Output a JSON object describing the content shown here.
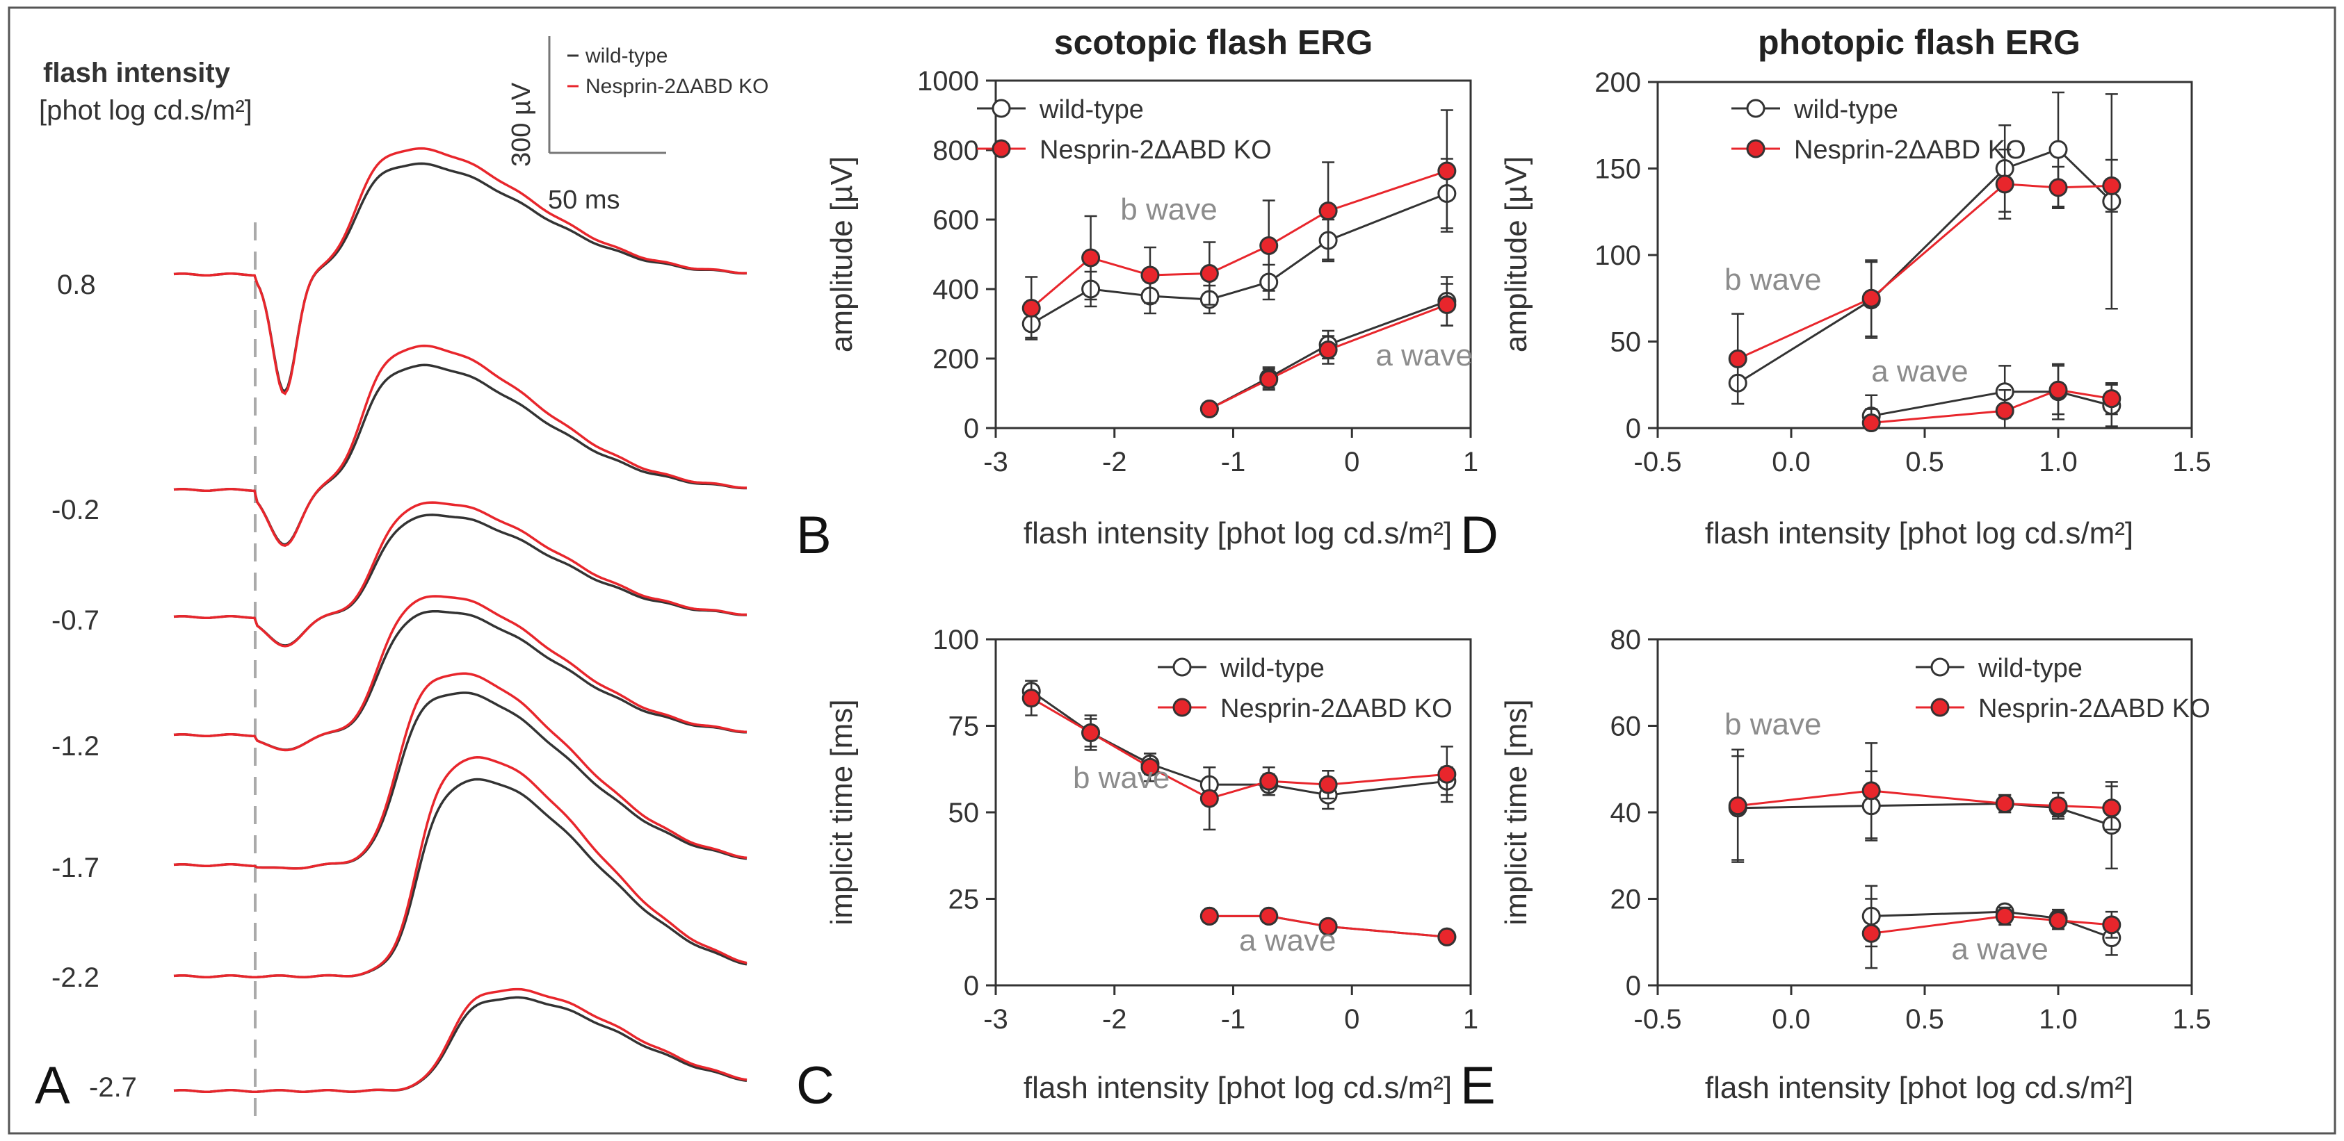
{
  "figure": {
    "colors": {
      "wt": "#333333",
      "ko": "#e8262c",
      "axis": "#333333",
      "wave_label": "#8c8c8c",
      "baseline": "#aaaaaa"
    }
  },
  "panel_a": {
    "letter": "A",
    "title_line1": "flash intensity",
    "title_line2": "[phot log cd.s/m²]",
    "scale_y": "300 µV",
    "scale_x": "50 ms",
    "legend": [
      "wild-type",
      "Nesprin-2ΔABD KO"
    ],
    "trace_labels": [
      "0.8",
      "-0.2",
      "-0.7",
      "-1.2",
      "-1.7",
      "-2.2",
      "-2.7"
    ]
  },
  "chart_data": [
    {
      "id": "B",
      "type": "line",
      "panel_letter": "B",
      "title": "scotopic flash ERG",
      "xlabel": "flash intensity [phot log cd.s/m²]",
      "ylabel": "amplitude [µV]",
      "xlim": [
        -3,
        1
      ],
      "ylim": [
        0,
        1000
      ],
      "xticks": [
        "-3",
        "-2",
        "-1",
        "0",
        "1"
      ],
      "xtick_values": [
        -3,
        -2,
        -1,
        0,
        1
      ],
      "yticks": [
        "0",
        "200",
        "400",
        "600",
        "800",
        "1000"
      ],
      "ytick_values": [
        0,
        200,
        400,
        600,
        800,
        1000
      ],
      "legend": [
        "wild-type",
        "Nesprin-2ΔABD KO"
      ],
      "annotations": [
        {
          "text": "b wave",
          "x": -1.95,
          "y": 600
        },
        {
          "text": "a wave",
          "x": 0.2,
          "y": 180
        }
      ],
      "series": [
        {
          "name": "wild-type",
          "group": "b wave",
          "kind": "wt",
          "x": [
            -2.7,
            -2.2,
            -1.7,
            -1.2,
            -0.7,
            -0.2,
            0.8
          ],
          "y": [
            300,
            400,
            380,
            370,
            420,
            540,
            675
          ],
          "err": [
            40,
            50,
            50,
            40,
            50,
            60,
            100
          ]
        },
        {
          "name": "Nesprin-2ΔABD KO",
          "group": "b wave",
          "kind": "ko",
          "x": [
            -2.7,
            -2.2,
            -1.7,
            -1.2,
            -0.7,
            -0.2,
            0.8
          ],
          "y": [
            345,
            490,
            440,
            445,
            525,
            625,
            740
          ],
          "err": [
            90,
            120,
            80,
            90,
            130,
            140,
            175
          ]
        },
        {
          "name": "wild-type",
          "group": "a wave",
          "kind": "wt",
          "x": [
            -1.2,
            -0.7,
            -0.2,
            0.8
          ],
          "y": [
            55,
            145,
            240,
            365
          ],
          "err": [
            15,
            30,
            40,
            70
          ]
        },
        {
          "name": "Nesprin-2ΔABD KO",
          "group": "a wave",
          "kind": "ko",
          "x": [
            -1.2,
            -0.7,
            -0.2,
            0.8
          ],
          "y": [
            55,
            140,
            225,
            355
          ],
          "err": [
            15,
            30,
            40,
            60
          ]
        }
      ]
    },
    {
      "id": "C",
      "type": "line",
      "panel_letter": "C",
      "title": "",
      "xlabel": "flash intensity [phot log cd.s/m²]",
      "ylabel": "implicit time [ms]",
      "xlim": [
        -3,
        1
      ],
      "ylim": [
        0,
        100
      ],
      "xticks": [
        "-3",
        "-2",
        "-1",
        "0",
        "1"
      ],
      "xtick_values": [
        -3,
        -2,
        -1,
        0,
        1
      ],
      "yticks": [
        "0",
        "25",
        "50",
        "75",
        "100"
      ],
      "ytick_values": [
        0,
        25,
        50,
        75,
        100
      ],
      "legend": [
        "wild-type",
        "Nesprin-2ΔABD KO"
      ],
      "annotations": [
        {
          "text": "b wave",
          "x": -2.35,
          "y": 57
        },
        {
          "text": "a wave",
          "x": -0.95,
          "y": 10
        }
      ],
      "series": [
        {
          "name": "wild-type",
          "group": "b wave",
          "kind": "wt",
          "x": [
            -2.7,
            -2.2,
            -1.7,
            -1.2,
            -0.7,
            -0.2,
            0.8
          ],
          "y": [
            85,
            73,
            64,
            58,
            58,
            55,
            59
          ],
          "err": [
            3,
            4,
            3,
            5,
            3,
            4,
            4
          ]
        },
        {
          "name": "Nesprin-2ΔABD KO",
          "group": "b wave",
          "kind": "ko",
          "x": [
            -2.7,
            -2.2,
            -1.7,
            -1.2,
            -0.7,
            -0.2,
            0.8
          ],
          "y": [
            83,
            73,
            63,
            54,
            59,
            58,
            61
          ],
          "err": [
            5,
            5,
            4,
            9,
            4,
            4,
            8
          ]
        },
        {
          "name": "wild-type",
          "group": "a wave",
          "kind": "wt",
          "x": [
            -1.2,
            -0.7,
            -0.2,
            0.8
          ],
          "y": [
            20,
            20,
            17,
            14
          ],
          "err": [
            1,
            1,
            1,
            1
          ]
        },
        {
          "name": "Nesprin-2ΔABD KO",
          "group": "a wave",
          "kind": "ko",
          "x": [
            -1.2,
            -0.7,
            -0.2,
            0.8
          ],
          "y": [
            20,
            20,
            17,
            14
          ],
          "err": [
            1,
            1,
            1,
            1
          ]
        }
      ]
    },
    {
      "id": "D",
      "type": "line",
      "panel_letter": "D",
      "title": "photopic flash ERG",
      "xlabel": "flash intensity [phot log cd.s/m²]",
      "ylabel": "amplitude [µV]",
      "xlim": [
        -0.5,
        1.5
      ],
      "ylim": [
        0,
        200
      ],
      "xticks": [
        "-0.5",
        "0.0",
        "0.5",
        "1.0",
        "1.5"
      ],
      "xtick_values": [
        -0.5,
        0.0,
        0.5,
        1.0,
        1.5
      ],
      "yticks": [
        "0",
        "50",
        "100",
        "150",
        "200"
      ],
      "ytick_values": [
        0,
        50,
        100,
        150,
        200
      ],
      "legend": [
        "wild-type",
        "Nesprin-2ΔABD KO"
      ],
      "annotations": [
        {
          "text": "b wave",
          "x": -0.25,
          "y": 80
        },
        {
          "text": "a wave",
          "x": 0.3,
          "y": 27
        }
      ],
      "series": [
        {
          "name": "wild-type",
          "group": "b wave",
          "kind": "wt",
          "x": [
            -0.2,
            0.3,
            0.8,
            1.0,
            1.2
          ],
          "y": [
            26,
            74,
            150,
            161,
            131
          ],
          "err": [
            12,
            22,
            25,
            33,
            62
          ]
        },
        {
          "name": "Nesprin-2ΔABD KO",
          "group": "b wave",
          "kind": "ko",
          "x": [
            -0.2,
            0.3,
            0.8,
            1.0,
            1.2
          ],
          "y": [
            40,
            75,
            141,
            139,
            140
          ],
          "err": [
            26,
            22,
            20,
            12,
            15
          ]
        },
        {
          "name": "wild-type",
          "group": "a wave",
          "kind": "wt",
          "x": [
            0.3,
            0.8,
            1.0,
            1.2
          ],
          "y": [
            7,
            21,
            21,
            13
          ],
          "err": [
            12,
            15,
            16,
            12
          ]
        },
        {
          "name": "Nesprin-2ΔABD KO",
          "group": "a wave",
          "kind": "ko",
          "x": [
            0.3,
            0.8,
            1.0,
            1.2
          ],
          "y": [
            3,
            10,
            22,
            17
          ],
          "err": [
            8,
            12,
            14,
            9
          ]
        }
      ]
    },
    {
      "id": "E",
      "type": "line",
      "panel_letter": "E",
      "title": "",
      "xlabel": "flash intensity [phot log cd.s/m²]",
      "ylabel": "implicit time [ms]",
      "xlim": [
        -0.5,
        1.5
      ],
      "ylim": [
        0,
        80
      ],
      "xticks": [
        "-0.5",
        "0.0",
        "0.5",
        "1.0",
        "1.5"
      ],
      "xtick_values": [
        -0.5,
        0.0,
        0.5,
        1.0,
        1.5
      ],
      "yticks": [
        "0",
        "20",
        "40",
        "60",
        "80"
      ],
      "ytick_values": [
        0,
        20,
        40,
        60,
        80
      ],
      "legend": [
        "wild-type",
        "Nesprin-2ΔABD KO"
      ],
      "annotations": [
        {
          "text": "b wave",
          "x": -0.25,
          "y": 58
        },
        {
          "text": "a wave",
          "x": 0.6,
          "y": 6
        }
      ],
      "series": [
        {
          "name": "wild-type",
          "group": "b wave",
          "kind": "wt",
          "x": [
            -0.2,
            0.3,
            0.8,
            1.0,
            1.2
          ],
          "y": [
            41,
            41.5,
            42,
            41,
            37
          ],
          "err": [
            12,
            8,
            2,
            2,
            10
          ]
        },
        {
          "name": "Nesprin-2ΔABD KO",
          "group": "b wave",
          "kind": "ko",
          "x": [
            -0.2,
            0.3,
            0.8,
            1.0,
            1.2
          ],
          "y": [
            41.5,
            45,
            42,
            41.5,
            41
          ],
          "err": [
            13,
            11,
            2,
            3,
            5
          ]
        },
        {
          "name": "wild-type",
          "group": "a wave",
          "kind": "wt",
          "x": [
            0.3,
            0.8,
            1.0,
            1.2
          ],
          "y": [
            16,
            17,
            15.5,
            11
          ],
          "err": [
            7,
            1,
            2,
            4
          ]
        },
        {
          "name": "Nesprin-2ΔABD KO",
          "group": "a wave",
          "kind": "ko",
          "x": [
            0.3,
            0.8,
            1.0,
            1.2
          ],
          "y": [
            12,
            16,
            15,
            14
          ],
          "err": [
            8,
            2,
            2,
            3
          ]
        }
      ]
    }
  ]
}
